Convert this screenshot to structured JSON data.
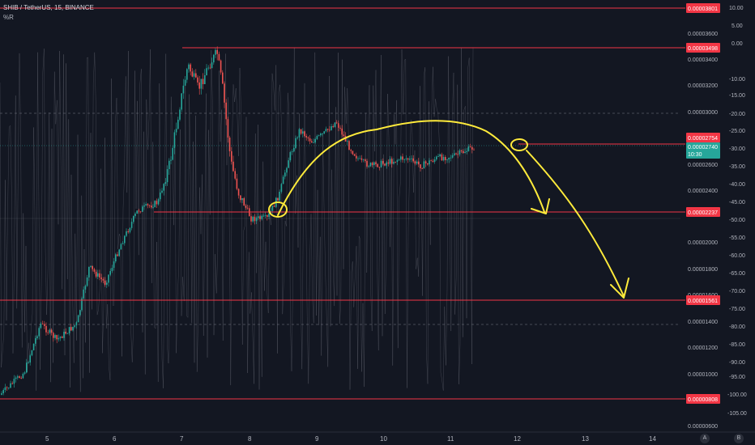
{
  "header": {
    "symbol_line": "SHIB / TetherUS, 15, BINANCE",
    "indicator": "%R"
  },
  "price_scale": {
    "labels": [
      "0.00003600",
      "0.00003400",
      "0.00003200",
      "0.00003000",
      "0.00002600",
      "0.00002400",
      "0.00002000",
      "0.00001800",
      "0.00001600",
      "0.00001400",
      "0.00001200",
      "0.00001000",
      "0.00000600"
    ]
  },
  "percent_r_scale": {
    "labels": [
      "10.00",
      "5.00",
      "0.00",
      "-10.00",
      "-15.00",
      "-20.00",
      "-25.00",
      "-30.00",
      "-35.00",
      "-40.00",
      "-45.00",
      "-50.00",
      "-55.00",
      "-60.00",
      "-65.00",
      "-70.00",
      "-75.00",
      "-80.00",
      "-85.00",
      "-90.00",
      "-95.00",
      "-100.00",
      "-105.00"
    ]
  },
  "horizontal_levels": [
    {
      "price_label": "0.00003801",
      "color": "#f23645"
    },
    {
      "price_label": "0.00003498",
      "color": "#f23645"
    },
    {
      "price_label": "0.00002754",
      "color": "#f23645"
    },
    {
      "price_label": "0.00002237",
      "color": "#f23645"
    },
    {
      "price_label": "0.00001561",
      "color": "#f23645"
    },
    {
      "price_label": "0.00000808",
      "color": "#f23645"
    }
  ],
  "current_price": {
    "value": "0.00002740",
    "countdown": "10:30",
    "color": "#26a69a"
  },
  "time_axis": {
    "labels": [
      "5",
      "6",
      "7",
      "8",
      "9",
      "10",
      "11",
      "12",
      "13",
      "14"
    ]
  },
  "corner_buttons": {
    "auto": "A",
    "settings": "B"
  },
  "colors": {
    "background": "#131722",
    "up": "#26a69a",
    "down": "#ef5350",
    "drawing": "#ffeb3b",
    "level": "#f23645"
  }
}
